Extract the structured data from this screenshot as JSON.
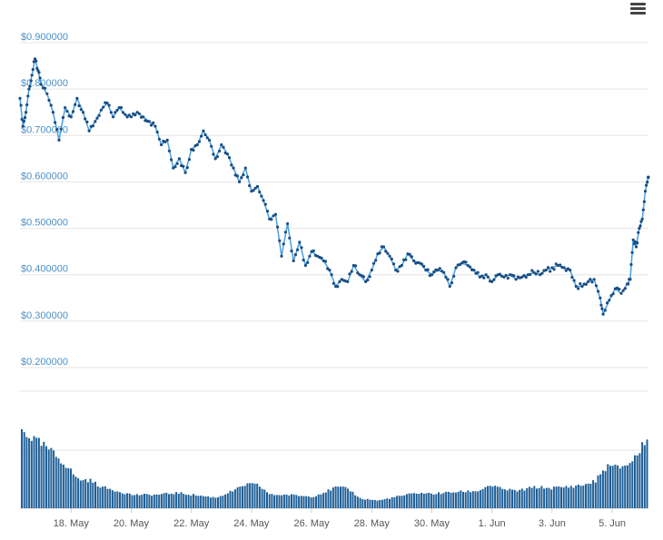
{
  "menu": {
    "icon": "hamburger-menu-icon"
  },
  "colors": {
    "line": "#4a9ee0",
    "marker": "#1a4d82",
    "volume": "#1f5f97",
    "grid": "#e6e6e6",
    "ytick": "#4a90c8",
    "xtick": "#555555"
  },
  "chart_data": [
    {
      "type": "line",
      "title": "",
      "xlabel": "",
      "ylabel": "",
      "ylim": [
        0.2,
        0.9
      ],
      "y_ticks": [
        "$0.900000",
        "$0.800000",
        "$0.700000",
        "$0.600000",
        "$0.500000",
        "$0.400000",
        "$0.300000",
        "$0.200000"
      ],
      "x_ticks": [
        "18. May",
        "20. May",
        "22. May",
        "24. May",
        "26. May",
        "28. May",
        "30. May",
        "1. Jun",
        "3. Jun",
        "5. Jun"
      ],
      "x_range_days": [
        16.3,
        37.2
      ],
      "markers": true,
      "grid": true,
      "series": [
        {
          "values": [
            [
              16.3,
              0.78
            ],
            [
              16.4,
              0.72
            ],
            [
              16.5,
              0.75
            ],
            [
              16.6,
              0.8
            ],
            [
              16.7,
              0.83
            ],
            [
              16.8,
              0.865
            ],
            [
              16.9,
              0.84
            ],
            [
              17.0,
              0.81
            ],
            [
              17.2,
              0.79
            ],
            [
              17.4,
              0.75
            ],
            [
              17.6,
              0.69
            ],
            [
              17.8,
              0.76
            ],
            [
              18.0,
              0.74
            ],
            [
              18.2,
              0.78
            ],
            [
              18.4,
              0.75
            ],
            [
              18.6,
              0.71
            ],
            [
              18.8,
              0.73
            ],
            [
              19.0,
              0.755
            ],
            [
              19.2,
              0.77
            ],
            [
              19.4,
              0.74
            ],
            [
              19.6,
              0.76
            ],
            [
              19.8,
              0.745
            ],
            [
              20.0,
              0.74
            ],
            [
              20.2,
              0.75
            ],
            [
              20.4,
              0.74
            ],
            [
              20.6,
              0.73
            ],
            [
              20.8,
              0.72
            ],
            [
              21.0,
              0.68
            ],
            [
              21.2,
              0.69
            ],
            [
              21.4,
              0.63
            ],
            [
              21.6,
              0.65
            ],
            [
              21.8,
              0.62
            ],
            [
              22.0,
              0.67
            ],
            [
              22.2,
              0.68
            ],
            [
              22.4,
              0.71
            ],
            [
              22.6,
              0.69
            ],
            [
              22.8,
              0.65
            ],
            [
              23.0,
              0.68
            ],
            [
              23.2,
              0.66
            ],
            [
              23.4,
              0.63
            ],
            [
              23.6,
              0.6
            ],
            [
              23.8,
              0.63
            ],
            [
              24.0,
              0.58
            ],
            [
              24.2,
              0.59
            ],
            [
              24.4,
              0.56
            ],
            [
              24.6,
              0.52
            ],
            [
              24.8,
              0.53
            ],
            [
              25.0,
              0.44
            ],
            [
              25.2,
              0.51
            ],
            [
              25.4,
              0.43
            ],
            [
              25.6,
              0.47
            ],
            [
              25.8,
              0.42
            ],
            [
              26.0,
              0.45
            ],
            [
              26.2,
              0.44
            ],
            [
              26.4,
              0.43
            ],
            [
              26.6,
              0.41
            ],
            [
              26.8,
              0.375
            ],
            [
              27.0,
              0.39
            ],
            [
              27.2,
              0.385
            ],
            [
              27.4,
              0.42
            ],
            [
              27.6,
              0.4
            ],
            [
              27.8,
              0.385
            ],
            [
              28.0,
              0.41
            ],
            [
              28.2,
              0.445
            ],
            [
              28.4,
              0.46
            ],
            [
              28.6,
              0.44
            ],
            [
              28.8,
              0.41
            ],
            [
              29.0,
              0.42
            ],
            [
              29.2,
              0.445
            ],
            [
              29.4,
              0.43
            ],
            [
              29.6,
              0.425
            ],
            [
              29.8,
              0.41
            ],
            [
              30.0,
              0.4
            ],
            [
              30.2,
              0.41
            ],
            [
              30.4,
              0.405
            ],
            [
              30.6,
              0.375
            ],
            [
              30.8,
              0.415
            ],
            [
              31.0,
              0.425
            ],
            [
              31.2,
              0.42
            ],
            [
              31.4,
              0.41
            ],
            [
              31.6,
              0.395
            ],
            [
              31.8,
              0.4
            ],
            [
              32.0,
              0.385
            ],
            [
              32.2,
              0.4
            ],
            [
              32.4,
              0.395
            ],
            [
              32.6,
              0.4
            ],
            [
              32.8,
              0.39
            ],
            [
              33.0,
              0.395
            ],
            [
              33.2,
              0.4
            ],
            [
              33.4,
              0.405
            ],
            [
              33.6,
              0.4
            ],
            [
              33.8,
              0.41
            ],
            [
              34.0,
              0.415
            ],
            [
              34.2,
              0.42
            ],
            [
              34.4,
              0.415
            ],
            [
              34.6,
              0.41
            ],
            [
              34.8,
              0.375
            ],
            [
              35.0,
              0.375
            ],
            [
              35.2,
              0.385
            ],
            [
              35.4,
              0.39
            ],
            [
              35.6,
              0.35
            ],
            [
              35.7,
              0.315
            ],
            [
              35.9,
              0.345
            ],
            [
              36.1,
              0.37
            ],
            [
              36.3,
              0.36
            ],
            [
              36.5,
              0.38
            ],
            [
              36.6,
              0.39
            ],
            [
              36.7,
              0.475
            ],
            [
              36.8,
              0.46
            ],
            [
              36.9,
              0.5
            ],
            [
              37.0,
              0.52
            ],
            [
              37.1,
              0.58
            ],
            [
              37.2,
              0.61
            ]
          ]
        }
      ]
    },
    {
      "type": "bar",
      "title": "",
      "xlabel": "",
      "ylabel": "",
      "ylim": [
        0,
        85
      ],
      "grid": true,
      "volume_profile": [
        [
          16.3,
          82
        ],
        [
          16.8,
          70
        ],
        [
          17.2,
          62
        ],
        [
          17.8,
          45
        ],
        [
          18.2,
          30
        ],
        [
          18.6,
          29
        ],
        [
          19.0,
          22
        ],
        [
          19.5,
          18
        ],
        [
          20.0,
          14
        ],
        [
          20.8,
          14
        ],
        [
          21.5,
          16
        ],
        [
          22.0,
          14
        ],
        [
          22.8,
          11
        ],
        [
          23.5,
          20
        ],
        [
          23.8,
          25
        ],
        [
          24.2,
          24
        ],
        [
          24.6,
          14
        ],
        [
          25.2,
          14
        ],
        [
          26.0,
          12
        ],
        [
          26.5,
          18
        ],
        [
          26.8,
          22
        ],
        [
          27.2,
          20
        ],
        [
          27.6,
          10
        ],
        [
          28.2,
          8
        ],
        [
          28.8,
          12
        ],
        [
          29.5,
          16
        ],
        [
          30.0,
          15
        ],
        [
          30.8,
          17
        ],
        [
          31.5,
          18
        ],
        [
          31.9,
          24
        ],
        [
          32.3,
          20
        ],
        [
          32.8,
          18
        ],
        [
          33.4,
          22
        ],
        [
          33.9,
          21
        ],
        [
          34.4,
          22
        ],
        [
          35.0,
          24
        ],
        [
          35.4,
          28
        ],
        [
          35.8,
          44
        ],
        [
          36.2,
          42
        ],
        [
          36.6,
          48
        ],
        [
          36.9,
          60
        ],
        [
          37.2,
          80
        ]
      ]
    }
  ]
}
